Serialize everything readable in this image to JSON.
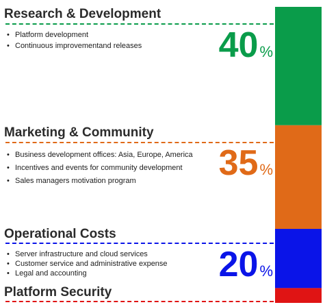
{
  "chart_data": {
    "type": "bar",
    "categories": [
      "Research & Development",
      "Marketing & Community",
      "Operational Costs",
      "Platform Security"
    ],
    "values": [
      40,
      35,
      20,
      5
    ],
    "unit": "%",
    "colors": [
      "#0a9c4a",
      "#e06a18",
      "#0a14e8",
      "#e01414"
    ]
  },
  "sections": [
    {
      "title": "Research & Development",
      "color": "#0a9c4a",
      "value": "40",
      "sign": "%",
      "bullets": [
        "Platform development",
        "Continuous improvementand releases"
      ]
    },
    {
      "title": "Marketing & Community",
      "color": "#e06a18",
      "value": "35",
      "sign": "%",
      "bullets": [
        "Business development offices: Asia, Europe, America",
        "Incentives and events for community development",
        "Sales managers motivation program"
      ]
    },
    {
      "title": "Operational Costs",
      "color": "#0a14e8",
      "value": "20",
      "sign": "%",
      "bullets": [
        "Server infrastructure and cloud services",
        "Customer service and administrative expense",
        "Legal and accounting"
      ]
    },
    {
      "title": "Platform Security",
      "color": "#e01414"
    }
  ]
}
